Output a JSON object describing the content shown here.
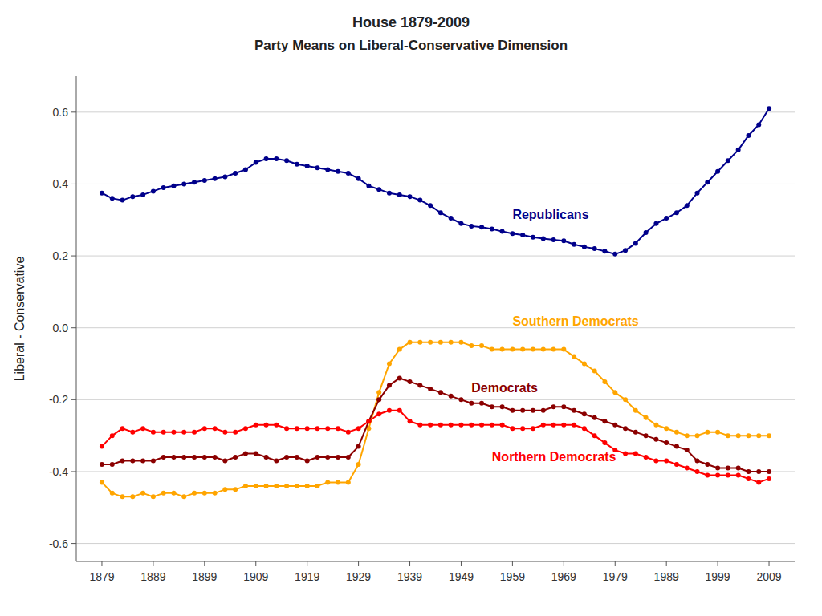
{
  "chart_data": {
    "type": "line",
    "title": "House 1879-2009",
    "subtitle": "Party Means on Liberal-Conservative Dimension",
    "y_label": "Liberal - Conservative",
    "x": [
      1879,
      1881,
      1883,
      1885,
      1887,
      1889,
      1891,
      1893,
      1895,
      1897,
      1899,
      1901,
      1903,
      1905,
      1907,
      1909,
      1911,
      1913,
      1915,
      1917,
      1919,
      1921,
      1923,
      1925,
      1927,
      1929,
      1931,
      1933,
      1935,
      1937,
      1939,
      1941,
      1943,
      1945,
      1947,
      1949,
      1951,
      1953,
      1955,
      1957,
      1959,
      1961,
      1963,
      1965,
      1967,
      1969,
      1971,
      1973,
      1975,
      1977,
      1979,
      1981,
      1983,
      1985,
      1987,
      1989,
      1991,
      1993,
      1995,
      1997,
      1999,
      2001,
      2003,
      2005,
      2007,
      2009
    ],
    "series": [
      {
        "name": "Republicans",
        "color": "#00008B",
        "marker": "circle",
        "values": [
          0.375,
          0.36,
          0.355,
          0.365,
          0.37,
          0.38,
          0.39,
          0.395,
          0.4,
          0.405,
          0.41,
          0.415,
          0.42,
          0.43,
          0.44,
          0.46,
          0.47,
          0.47,
          0.465,
          0.455,
          0.45,
          0.445,
          0.44,
          0.435,
          0.43,
          0.415,
          0.395,
          0.385,
          0.375,
          0.37,
          0.365,
          0.355,
          0.34,
          0.32,
          0.305,
          0.29,
          0.283,
          0.28,
          0.275,
          0.268,
          0.262,
          0.258,
          0.252,
          0.248,
          0.245,
          0.242,
          0.232,
          0.225,
          0.22,
          0.213,
          0.205,
          0.215,
          0.235,
          0.265,
          0.29,
          0.305,
          0.32,
          0.34,
          0.375,
          0.405,
          0.435,
          0.465,
          0.495,
          0.535,
          0.565,
          0.61
        ]
      },
      {
        "name": "Southern Democrats",
        "color": "#FFA500",
        "marker": "circle",
        "values": [
          -0.43,
          -0.46,
          -0.47,
          -0.47,
          -0.46,
          -0.47,
          -0.46,
          -0.46,
          -0.47,
          -0.46,
          -0.46,
          -0.46,
          -0.45,
          -0.45,
          -0.44,
          -0.44,
          -0.44,
          -0.44,
          -0.44,
          -0.44,
          -0.44,
          -0.44,
          -0.43,
          -0.43,
          -0.43,
          -0.38,
          -0.28,
          -0.18,
          -0.1,
          -0.06,
          -0.04,
          -0.04,
          -0.04,
          -0.04,
          -0.04,
          -0.04,
          -0.05,
          -0.05,
          -0.06,
          -0.06,
          -0.06,
          -0.06,
          -0.06,
          -0.06,
          -0.06,
          -0.06,
          -0.08,
          -0.1,
          -0.12,
          -0.15,
          -0.18,
          -0.2,
          -0.23,
          -0.25,
          -0.27,
          -0.28,
          -0.29,
          -0.3,
          -0.3,
          -0.29,
          -0.29,
          -0.3,
          -0.3,
          -0.3,
          -0.3,
          -0.3
        ]
      },
      {
        "name": "Democrats",
        "color": "#8B0000",
        "marker": "circle",
        "values": [
          -0.38,
          -0.38,
          -0.37,
          -0.37,
          -0.37,
          -0.37,
          -0.36,
          -0.36,
          -0.36,
          -0.36,
          -0.36,
          -0.36,
          -0.37,
          -0.36,
          -0.35,
          -0.35,
          -0.36,
          -0.37,
          -0.36,
          -0.36,
          -0.37,
          -0.36,
          -0.36,
          -0.36,
          -0.36,
          -0.33,
          -0.26,
          -0.2,
          -0.16,
          -0.14,
          -0.15,
          -0.16,
          -0.17,
          -0.18,
          -0.19,
          -0.2,
          -0.21,
          -0.21,
          -0.22,
          -0.22,
          -0.23,
          -0.23,
          -0.23,
          -0.23,
          -0.22,
          -0.22,
          -0.23,
          -0.24,
          -0.25,
          -0.26,
          -0.27,
          -0.28,
          -0.29,
          -0.3,
          -0.31,
          -0.32,
          -0.33,
          -0.34,
          -0.37,
          -0.38,
          -0.39,
          -0.39,
          -0.39,
          -0.4,
          -0.4,
          -0.4
        ]
      },
      {
        "name": "Northern Democrats",
        "color": "#FF0000",
        "marker": "circle",
        "values": [
          -0.33,
          -0.3,
          -0.28,
          -0.29,
          -0.28,
          -0.29,
          -0.29,
          -0.29,
          -0.29,
          -0.29,
          -0.28,
          -0.28,
          -0.29,
          -0.29,
          -0.28,
          -0.27,
          -0.27,
          -0.27,
          -0.28,
          -0.28,
          -0.28,
          -0.28,
          -0.28,
          -0.28,
          -0.29,
          -0.28,
          -0.26,
          -0.24,
          -0.23,
          -0.23,
          -0.26,
          -0.27,
          -0.27,
          -0.27,
          -0.27,
          -0.27,
          -0.27,
          -0.27,
          -0.27,
          -0.27,
          -0.28,
          -0.28,
          -0.28,
          -0.27,
          -0.27,
          -0.27,
          -0.27,
          -0.28,
          -0.3,
          -0.32,
          -0.34,
          -0.35,
          -0.35,
          -0.36,
          -0.37,
          -0.37,
          -0.38,
          -0.39,
          -0.4,
          -0.41,
          -0.41,
          -0.41,
          -0.41,
          -0.42,
          -0.43,
          -0.42
        ]
      }
    ],
    "xlim": [
      1874,
      2014
    ],
    "xticks": [
      1879,
      1889,
      1899,
      1909,
      1919,
      1929,
      1939,
      1949,
      1959,
      1969,
      1979,
      1989,
      1999,
      2009
    ],
    "ylim": [
      -0.65,
      0.7
    ],
    "yticks": [
      -0.6,
      -0.4,
      -0.2,
      {
        "value": 0,
        "label": "0.0"
      },
      0.2,
      0.4,
      0.6
    ],
    "grid": true
  }
}
